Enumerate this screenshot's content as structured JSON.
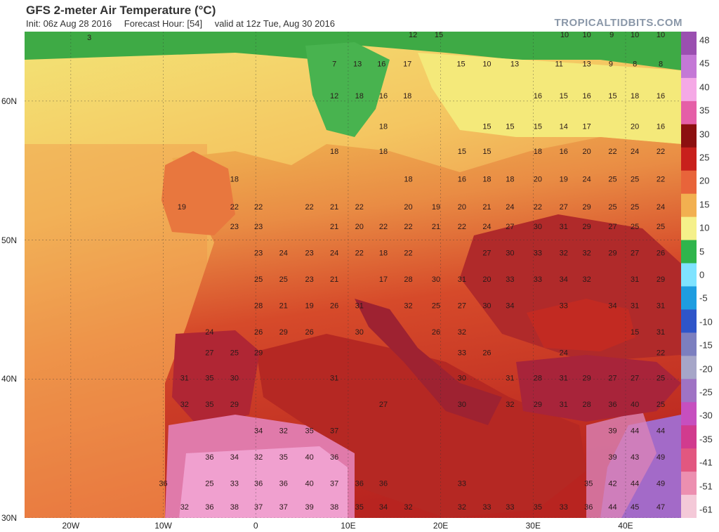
{
  "header": {
    "title": "GFS 2-meter Air Temperature (°C)",
    "init": "Init: 06z Aug 28 2016",
    "forecast_hour": "Forecast Hour: [54]",
    "valid": "valid at 12z Tue, Aug 30 2016",
    "brand": "TROPICALTIDBITS.COM"
  },
  "axes": {
    "lat_labels": [
      "60N",
      "50N",
      "40N",
      "30N"
    ],
    "lon_labels": [
      "20W",
      "10W",
      "0",
      "10E",
      "20E",
      "30E",
      "40E"
    ]
  },
  "colorbar": {
    "labels": [
      "48",
      "45",
      "40",
      "35",
      "30",
      "25",
      "20",
      "15",
      "10",
      "5",
      "0",
      "-5",
      "-10",
      "-15",
      "-20",
      "-25",
      "-30",
      "-35",
      "-41",
      "-51",
      "-61"
    ],
    "colors": [
      "#9a4fb0",
      "#c478d6",
      "#f5a9e6",
      "#e55fa7",
      "#8c1010",
      "#c8201c",
      "#e8643a",
      "#f2b050",
      "#f5f08a",
      "#2fb54c",
      "#7fe3ff",
      "#1e9de0",
      "#2f55c9",
      "#7c7fbf",
      "#a6a6c8",
      "#9f73c4",
      "#c64fbf",
      "#d13b8e",
      "#e25780",
      "#ec8fb0",
      "#f4c9d8"
    ]
  },
  "map_labels": [
    {
      "t": "3",
      "lon": -18,
      "lat": 64.4
    },
    {
      "t": "12",
      "lon": 17,
      "lat": 64.6
    },
    {
      "t": "15",
      "lon": 19.8,
      "lat": 64.6
    },
    {
      "t": "10",
      "lon": 33.4,
      "lat": 64.6
    },
    {
      "t": "10",
      "lon": 35.8,
      "lat": 64.6
    },
    {
      "t": "9",
      "lon": 38.5,
      "lat": 64.6
    },
    {
      "t": "10",
      "lon": 41,
      "lat": 64.6
    },
    {
      "t": "10",
      "lon": 43.8,
      "lat": 64.6
    },
    {
      "t": "7",
      "lon": 8.5,
      "lat": 62.5
    },
    {
      "t": "13",
      "lon": 11,
      "lat": 62.5
    },
    {
      "t": "16",
      "lon": 13.6,
      "lat": 62.5
    },
    {
      "t": "17",
      "lon": 16.4,
      "lat": 62.5
    },
    {
      "t": "15",
      "lon": 22.2,
      "lat": 62.5
    },
    {
      "t": "10",
      "lon": 25,
      "lat": 62.5
    },
    {
      "t": "13",
      "lon": 28,
      "lat": 62.5
    },
    {
      "t": "11",
      "lon": 32.8,
      "lat": 62.5
    },
    {
      "t": "13",
      "lon": 35.8,
      "lat": 62.5
    },
    {
      "t": "9",
      "lon": 38.4,
      "lat": 62.5
    },
    {
      "t": "8",
      "lon": 41,
      "lat": 62.5
    },
    {
      "t": "8",
      "lon": 43.8,
      "lat": 62.5
    },
    {
      "t": "12",
      "lon": 8.5,
      "lat": 60.2
    },
    {
      "t": "18",
      "lon": 11.2,
      "lat": 60.2
    },
    {
      "t": "16",
      "lon": 13.8,
      "lat": 60.2
    },
    {
      "t": "18",
      "lon": 16.4,
      "lat": 60.2
    },
    {
      "t": "16",
      "lon": 30.5,
      "lat": 60.2
    },
    {
      "t": "15",
      "lon": 33.3,
      "lat": 60.2
    },
    {
      "t": "16",
      "lon": 35.8,
      "lat": 60.2
    },
    {
      "t": "15",
      "lon": 38.6,
      "lat": 60.2
    },
    {
      "t": "18",
      "lon": 41,
      "lat": 60.2
    },
    {
      "t": "16",
      "lon": 43.8,
      "lat": 60.2
    },
    {
      "t": "18",
      "lon": 13.8,
      "lat": 58
    },
    {
      "t": "15",
      "lon": 25,
      "lat": 58
    },
    {
      "t": "15",
      "lon": 27.5,
      "lat": 58
    },
    {
      "t": "15",
      "lon": 30.5,
      "lat": 58
    },
    {
      "t": "14",
      "lon": 33.3,
      "lat": 58
    },
    {
      "t": "17",
      "lon": 35.8,
      "lat": 58
    },
    {
      "t": "20",
      "lon": 41,
      "lat": 58
    },
    {
      "t": "16",
      "lon": 43.8,
      "lat": 58
    },
    {
      "t": "18",
      "lon": 8.5,
      "lat": 56.2
    },
    {
      "t": "18",
      "lon": 13.8,
      "lat": 56.2
    },
    {
      "t": "15",
      "lon": 22.3,
      "lat": 56.2
    },
    {
      "t": "15",
      "lon": 25,
      "lat": 56.2
    },
    {
      "t": "18",
      "lon": 30.5,
      "lat": 56.2
    },
    {
      "t": "16",
      "lon": 33.3,
      "lat": 56.2
    },
    {
      "t": "20",
      "lon": 35.8,
      "lat": 56.2
    },
    {
      "t": "22",
      "lon": 38.6,
      "lat": 56.2
    },
    {
      "t": "24",
      "lon": 41,
      "lat": 56.2
    },
    {
      "t": "22",
      "lon": 43.8,
      "lat": 56.2
    },
    {
      "t": "18",
      "lon": -2.3,
      "lat": 54.2
    },
    {
      "t": "18",
      "lon": 16.5,
      "lat": 54.2
    },
    {
      "t": "16",
      "lon": 22.3,
      "lat": 54.2
    },
    {
      "t": "18",
      "lon": 25,
      "lat": 54.2
    },
    {
      "t": "18",
      "lon": 27.5,
      "lat": 54.2
    },
    {
      "t": "20",
      "lon": 30.5,
      "lat": 54.2
    },
    {
      "t": "19",
      "lon": 33.3,
      "lat": 54.2
    },
    {
      "t": "24",
      "lon": 35.8,
      "lat": 54.2
    },
    {
      "t": "25",
      "lon": 38.6,
      "lat": 54.2
    },
    {
      "t": "25",
      "lon": 41,
      "lat": 54.2
    },
    {
      "t": "22",
      "lon": 43.8,
      "lat": 54.2
    },
    {
      "t": "19",
      "lon": -8,
      "lat": 52.2
    },
    {
      "t": "22",
      "lon": -2.3,
      "lat": 52.2
    },
    {
      "t": "22",
      "lon": 0.3,
      "lat": 52.2
    },
    {
      "t": "22",
      "lon": 5.8,
      "lat": 52.2
    },
    {
      "t": "21",
      "lon": 8.5,
      "lat": 52.2
    },
    {
      "t": "22",
      "lon": 11.2,
      "lat": 52.2
    },
    {
      "t": "20",
      "lon": 16.5,
      "lat": 52.2
    },
    {
      "t": "19",
      "lon": 19.5,
      "lat": 52.2
    },
    {
      "t": "20",
      "lon": 22.3,
      "lat": 52.2
    },
    {
      "t": "21",
      "lon": 25,
      "lat": 52.2
    },
    {
      "t": "24",
      "lon": 27.5,
      "lat": 52.2
    },
    {
      "t": "22",
      "lon": 30.5,
      "lat": 52.2
    },
    {
      "t": "27",
      "lon": 33.3,
      "lat": 52.2
    },
    {
      "t": "29",
      "lon": 35.8,
      "lat": 52.2
    },
    {
      "t": "25",
      "lon": 38.6,
      "lat": 52.2
    },
    {
      "t": "25",
      "lon": 41,
      "lat": 52.2
    },
    {
      "t": "24",
      "lon": 43.8,
      "lat": 52.2
    },
    {
      "t": "23",
      "lon": -2.3,
      "lat": 50.8
    },
    {
      "t": "23",
      "lon": 0.3,
      "lat": 50.8
    },
    {
      "t": "21",
      "lon": 8.5,
      "lat": 50.8
    },
    {
      "t": "20",
      "lon": 11.2,
      "lat": 50.8
    },
    {
      "t": "22",
      "lon": 13.8,
      "lat": 50.8
    },
    {
      "t": "22",
      "lon": 16.5,
      "lat": 50.8
    },
    {
      "t": "21",
      "lon": 19.5,
      "lat": 50.8
    },
    {
      "t": "22",
      "lon": 22.3,
      "lat": 50.8
    },
    {
      "t": "24",
      "lon": 25,
      "lat": 50.8
    },
    {
      "t": "27",
      "lon": 27.5,
      "lat": 50.8
    },
    {
      "t": "30",
      "lon": 30.5,
      "lat": 50.8
    },
    {
      "t": "31",
      "lon": 33.3,
      "lat": 50.8
    },
    {
      "t": "29",
      "lon": 35.8,
      "lat": 50.8
    },
    {
      "t": "27",
      "lon": 38.6,
      "lat": 50.8
    },
    {
      "t": "25",
      "lon": 41,
      "lat": 50.8
    },
    {
      "t": "25",
      "lon": 43.8,
      "lat": 50.8
    },
    {
      "t": "23",
      "lon": 0.3,
      "lat": 48.9
    },
    {
      "t": "24",
      "lon": 3,
      "lat": 48.9
    },
    {
      "t": "23",
      "lon": 5.8,
      "lat": 48.9
    },
    {
      "t": "24",
      "lon": 8.5,
      "lat": 48.9
    },
    {
      "t": "22",
      "lon": 11.2,
      "lat": 48.9
    },
    {
      "t": "18",
      "lon": 13.8,
      "lat": 48.9
    },
    {
      "t": "22",
      "lon": 16.5,
      "lat": 48.9
    },
    {
      "t": "27",
      "lon": 25,
      "lat": 48.9
    },
    {
      "t": "30",
      "lon": 27.5,
      "lat": 48.9
    },
    {
      "t": "33",
      "lon": 30.5,
      "lat": 48.9
    },
    {
      "t": "32",
      "lon": 33.3,
      "lat": 48.9
    },
    {
      "t": "32",
      "lon": 35.8,
      "lat": 48.9
    },
    {
      "t": "29",
      "lon": 38.6,
      "lat": 48.9
    },
    {
      "t": "27",
      "lon": 41,
      "lat": 48.9
    },
    {
      "t": "26",
      "lon": 43.8,
      "lat": 48.9
    },
    {
      "t": "25",
      "lon": 0.3,
      "lat": 47
    },
    {
      "t": "25",
      "lon": 3,
      "lat": 47
    },
    {
      "t": "23",
      "lon": 5.8,
      "lat": 47
    },
    {
      "t": "21",
      "lon": 8.5,
      "lat": 47
    },
    {
      "t": "17",
      "lon": 13.8,
      "lat": 47
    },
    {
      "t": "28",
      "lon": 16.5,
      "lat": 47
    },
    {
      "t": "30",
      "lon": 19.5,
      "lat": 47
    },
    {
      "t": "31",
      "lon": 22.3,
      "lat": 47
    },
    {
      "t": "20",
      "lon": 25,
      "lat": 47
    },
    {
      "t": "33",
      "lon": 27.5,
      "lat": 47
    },
    {
      "t": "33",
      "lon": 30.5,
      "lat": 47
    },
    {
      "t": "34",
      "lon": 33.3,
      "lat": 47
    },
    {
      "t": "32",
      "lon": 35.8,
      "lat": 47
    },
    {
      "t": "31",
      "lon": 41,
      "lat": 47
    },
    {
      "t": "29",
      "lon": 43.8,
      "lat": 47
    },
    {
      "t": "28",
      "lon": 0.3,
      "lat": 45.1
    },
    {
      "t": "21",
      "lon": 3,
      "lat": 45.1
    },
    {
      "t": "19",
      "lon": 5.8,
      "lat": 45.1
    },
    {
      "t": "26",
      "lon": 8.5,
      "lat": 45.1
    },
    {
      "t": "31",
      "lon": 11.2,
      "lat": 45.1
    },
    {
      "t": "32",
      "lon": 16.5,
      "lat": 45.1
    },
    {
      "t": "25",
      "lon": 19.5,
      "lat": 45.1
    },
    {
      "t": "27",
      "lon": 22.3,
      "lat": 45.1
    },
    {
      "t": "30",
      "lon": 25,
      "lat": 45.1
    },
    {
      "t": "34",
      "lon": 27.5,
      "lat": 45.1
    },
    {
      "t": "33",
      "lon": 33.3,
      "lat": 45.1
    },
    {
      "t": "34",
      "lon": 38.6,
      "lat": 45.1
    },
    {
      "t": "31",
      "lon": 41,
      "lat": 45.1
    },
    {
      "t": "31",
      "lon": 43.8,
      "lat": 45.1
    },
    {
      "t": "24",
      "lon": -5,
      "lat": 43.2
    },
    {
      "t": "26",
      "lon": 0.3,
      "lat": 43.2
    },
    {
      "t": "29",
      "lon": 3,
      "lat": 43.2
    },
    {
      "t": "26",
      "lon": 5.8,
      "lat": 43.2
    },
    {
      "t": "30",
      "lon": 11.2,
      "lat": 43.2
    },
    {
      "t": "26",
      "lon": 19.5,
      "lat": 43.2
    },
    {
      "t": "32",
      "lon": 22.3,
      "lat": 43.2
    },
    {
      "t": "15",
      "lon": 41,
      "lat": 43.2
    },
    {
      "t": "31",
      "lon": 43.8,
      "lat": 43.2
    },
    {
      "t": "27",
      "lon": -5,
      "lat": 41.7
    },
    {
      "t": "25",
      "lon": -2.3,
      "lat": 41.7
    },
    {
      "t": "29",
      "lon": 0.3,
      "lat": 41.7
    },
    {
      "t": "33",
      "lon": 22.3,
      "lat": 41.7
    },
    {
      "t": "26",
      "lon": 25,
      "lat": 41.7
    },
    {
      "t": "24",
      "lon": 33.3,
      "lat": 41.7
    },
    {
      "t": "22",
      "lon": 43.8,
      "lat": 41.7
    },
    {
      "t": "31",
      "lon": -7.7,
      "lat": 39.9
    },
    {
      "t": "35",
      "lon": -5,
      "lat": 39.9
    },
    {
      "t": "30",
      "lon": -2.3,
      "lat": 39.9
    },
    {
      "t": "31",
      "lon": 8.5,
      "lat": 39.9
    },
    {
      "t": "30",
      "lon": 22.3,
      "lat": 39.9
    },
    {
      "t": "31",
      "lon": 27.5,
      "lat": 39.9
    },
    {
      "t": "28",
      "lon": 30.5,
      "lat": 39.9
    },
    {
      "t": "31",
      "lon": 33.3,
      "lat": 39.9
    },
    {
      "t": "29",
      "lon": 35.8,
      "lat": 39.9
    },
    {
      "t": "27",
      "lon": 38.6,
      "lat": 39.9
    },
    {
      "t": "27",
      "lon": 41,
      "lat": 39.9
    },
    {
      "t": "25",
      "lon": 43.8,
      "lat": 39.9
    },
    {
      "t": "32",
      "lon": -7.7,
      "lat": 38
    },
    {
      "t": "35",
      "lon": -5,
      "lat": 38
    },
    {
      "t": "29",
      "lon": -2.3,
      "lat": 38
    },
    {
      "t": "27",
      "lon": 13.8,
      "lat": 38
    },
    {
      "t": "30",
      "lon": 22.3,
      "lat": 38
    },
    {
      "t": "32",
      "lon": 27.5,
      "lat": 38
    },
    {
      "t": "29",
      "lon": 30.5,
      "lat": 38
    },
    {
      "t": "31",
      "lon": 33.3,
      "lat": 38
    },
    {
      "t": "28",
      "lon": 35.8,
      "lat": 38
    },
    {
      "t": "36",
      "lon": 38.6,
      "lat": 38
    },
    {
      "t": "40",
      "lon": 41,
      "lat": 38
    },
    {
      "t": "25",
      "lon": 43.8,
      "lat": 38
    },
    {
      "t": "34",
      "lon": 0.3,
      "lat": 36.1
    },
    {
      "t": "32",
      "lon": 3,
      "lat": 36.1
    },
    {
      "t": "35",
      "lon": 5.8,
      "lat": 36.1
    },
    {
      "t": "37",
      "lon": 8.5,
      "lat": 36.1
    },
    {
      "t": "39",
      "lon": 38.6,
      "lat": 36.1
    },
    {
      "t": "44",
      "lon": 41,
      "lat": 36.1
    },
    {
      "t": "44",
      "lon": 43.8,
      "lat": 36.1
    },
    {
      "t": "36",
      "lon": -5,
      "lat": 34.2
    },
    {
      "t": "34",
      "lon": -2.3,
      "lat": 34.2
    },
    {
      "t": "32",
      "lon": 0.3,
      "lat": 34.2
    },
    {
      "t": "35",
      "lon": 3,
      "lat": 34.2
    },
    {
      "t": "40",
      "lon": 5.8,
      "lat": 34.2
    },
    {
      "t": "36",
      "lon": 8.5,
      "lat": 34.2
    },
    {
      "t": "39",
      "lon": 38.6,
      "lat": 34.2
    },
    {
      "t": "43",
      "lon": 41,
      "lat": 34.2
    },
    {
      "t": "49",
      "lon": 43.8,
      "lat": 34.2
    },
    {
      "t": "36",
      "lon": -10,
      "lat": 32.3
    },
    {
      "t": "25",
      "lon": -5,
      "lat": 32.3
    },
    {
      "t": "33",
      "lon": -2.3,
      "lat": 32.3
    },
    {
      "t": "36",
      "lon": 0.3,
      "lat": 32.3
    },
    {
      "t": "36",
      "lon": 3,
      "lat": 32.3
    },
    {
      "t": "40",
      "lon": 5.8,
      "lat": 32.3
    },
    {
      "t": "37",
      "lon": 8.5,
      "lat": 32.3
    },
    {
      "t": "36",
      "lon": 11.2,
      "lat": 32.3
    },
    {
      "t": "36",
      "lon": 13.8,
      "lat": 32.3
    },
    {
      "t": "33",
      "lon": 22.3,
      "lat": 32.3
    },
    {
      "t": "35",
      "lon": 36,
      "lat": 32.3
    },
    {
      "t": "42",
      "lon": 38.6,
      "lat": 32.3
    },
    {
      "t": "44",
      "lon": 41,
      "lat": 32.3
    },
    {
      "t": "49",
      "lon": 43.8,
      "lat": 32.3
    },
    {
      "t": "32",
      "lon": -7.7,
      "lat": 30.6
    },
    {
      "t": "36",
      "lon": -5,
      "lat": 30.6
    },
    {
      "t": "38",
      "lon": -2.3,
      "lat": 30.6
    },
    {
      "t": "37",
      "lon": 0.3,
      "lat": 30.6
    },
    {
      "t": "37",
      "lon": 3,
      "lat": 30.6
    },
    {
      "t": "39",
      "lon": 5.8,
      "lat": 30.6
    },
    {
      "t": "38",
      "lon": 8.5,
      "lat": 30.6
    },
    {
      "t": "35",
      "lon": 11.2,
      "lat": 30.6
    },
    {
      "t": "34",
      "lon": 13.8,
      "lat": 30.6
    },
    {
      "t": "32",
      "lon": 16.5,
      "lat": 30.6
    },
    {
      "t": "32",
      "lon": 22.3,
      "lat": 30.6
    },
    {
      "t": "33",
      "lon": 25,
      "lat": 30.6
    },
    {
      "t": "33",
      "lon": 27.5,
      "lat": 30.6
    },
    {
      "t": "35",
      "lon": 30.5,
      "lat": 30.6
    },
    {
      "t": "33",
      "lon": 33.3,
      "lat": 30.6
    },
    {
      "t": "36",
      "lon": 36,
      "lat": 30.6
    },
    {
      "t": "44",
      "lon": 38.6,
      "lat": 30.6
    },
    {
      "t": "45",
      "lon": 41,
      "lat": 30.6
    },
    {
      "t": "47",
      "lon": 43.8,
      "lat": 30.6
    }
  ]
}
